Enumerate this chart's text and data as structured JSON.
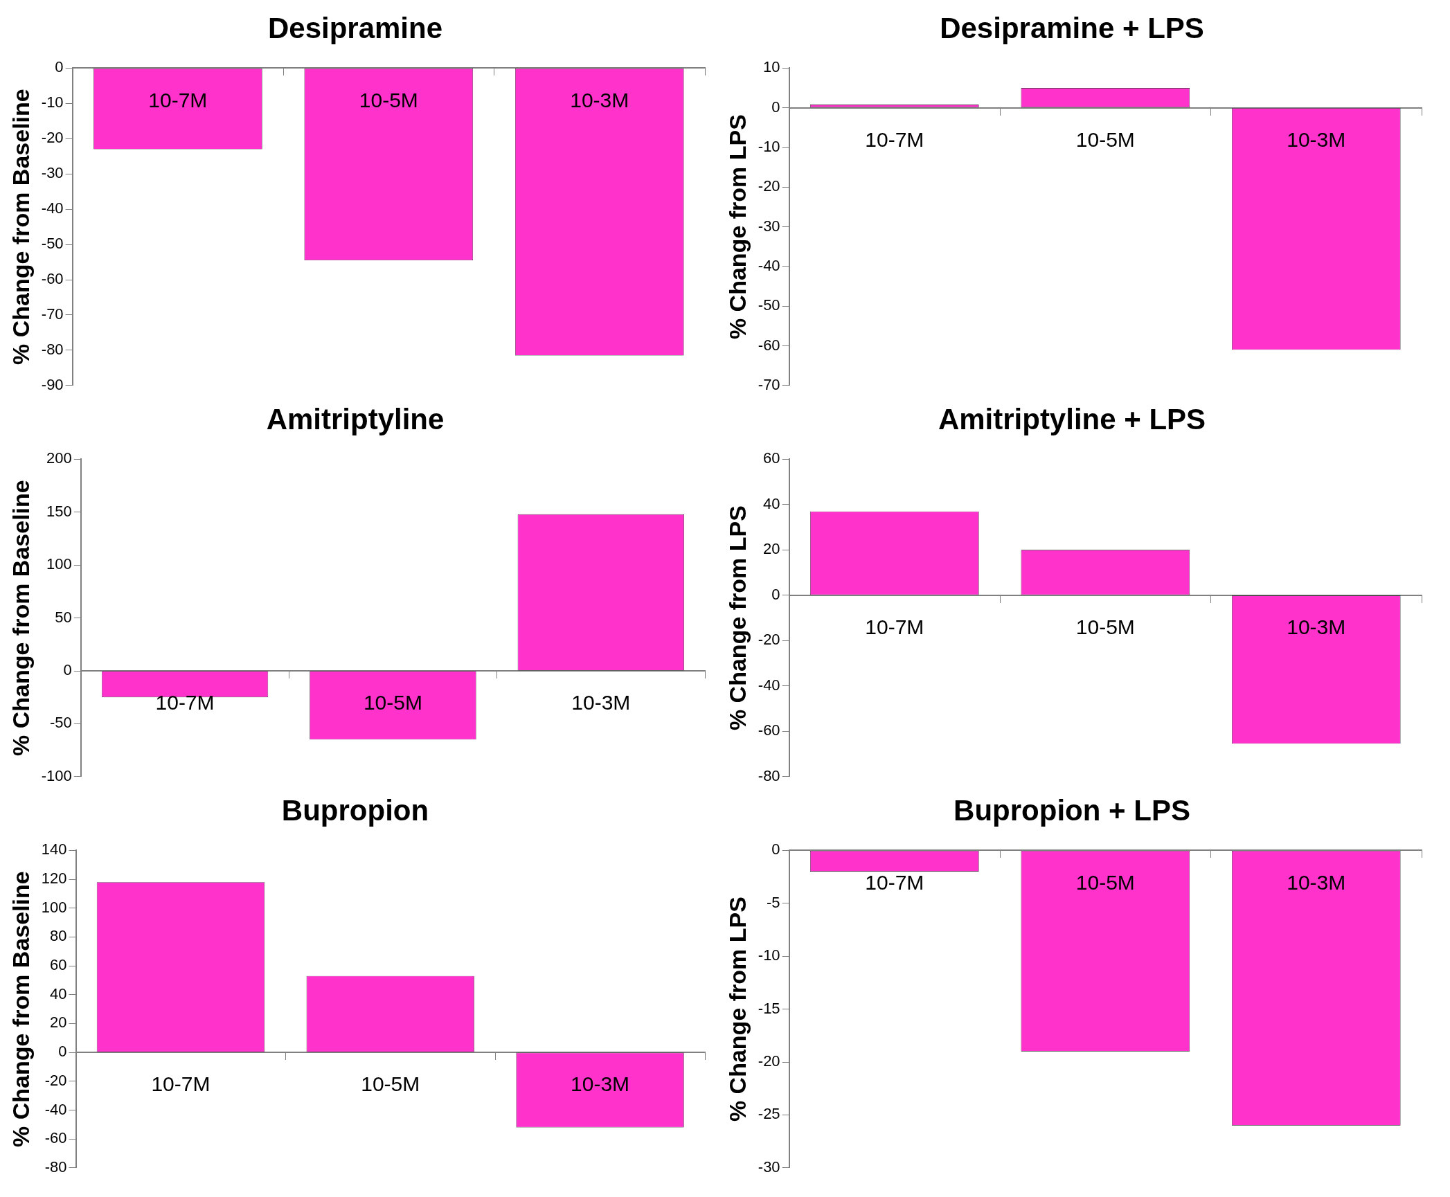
{
  "chart_data": [
    {
      "type": "bar",
      "title": "Desipramine",
      "ylabel": "% Change from Baseline",
      "categories": [
        "10-7M",
        "10-5M",
        "10-3M"
      ],
      "values": [
        -23,
        -54.5,
        -81.5
      ],
      "color": "#ff33cc",
      "ylim": [
        -90,
        0
      ],
      "yticks": [
        -90,
        -80,
        -70,
        -60,
        -50,
        -40,
        -30,
        -20,
        -10,
        0
      ]
    },
    {
      "type": "bar",
      "title": "Desipramine + LPS",
      "ylabel": "% Change from LPS",
      "categories": [
        "10-7M",
        "10-5M",
        "10-3M"
      ],
      "values": [
        0.8,
        5,
        -61
      ],
      "color": "#ff33cc",
      "ylim": [
        -70,
        10
      ],
      "yticks": [
        -70,
        -60,
        -50,
        -40,
        -30,
        -20,
        -10,
        0,
        10
      ]
    },
    {
      "type": "bar",
      "title": "Amitriptyline",
      "ylabel": "% Change from Baseline",
      "categories": [
        "10-7M",
        "10-5M",
        "10-3M"
      ],
      "values": [
        -25,
        -65,
        148
      ],
      "color": "#ff33cc",
      "ylim": [
        -100,
        200
      ],
      "yticks": [
        -100,
        -50,
        0,
        50,
        100,
        150,
        200
      ]
    },
    {
      "type": "bar",
      "title": "Amitriptyline + LPS",
      "ylabel": "% Change from LPS",
      "categories": [
        "10-7M",
        "10-5M",
        "10-3M"
      ],
      "values": [
        37,
        20,
        -65.5
      ],
      "color": "#ff33cc",
      "ylim": [
        -80,
        60
      ],
      "yticks": [
        -80,
        -60,
        -40,
        -20,
        0,
        20,
        40,
        60
      ]
    },
    {
      "type": "bar",
      "title": "Bupropion",
      "ylabel": "% Change from Baseline",
      "categories": [
        "10-7M",
        "10-5M",
        "10-3M"
      ],
      "values": [
        118,
        53,
        -52
      ],
      "color": "#ff33cc",
      "ylim": [
        -80,
        140
      ],
      "yticks": [
        -80,
        -60,
        -40,
        -20,
        0,
        20,
        40,
        60,
        80,
        100,
        120,
        140
      ]
    },
    {
      "type": "bar",
      "title": "Bupropion + LPS",
      "ylabel": "% Change from LPS",
      "categories": [
        "10-7M",
        "10-5M",
        "10-3M"
      ],
      "values": [
        -2,
        -19,
        -26
      ],
      "color": "#ff33cc",
      "ylim": [
        -30,
        0
      ],
      "yticks": [
        -30,
        -25,
        -20,
        -15,
        -10,
        -5,
        0
      ]
    }
  ]
}
